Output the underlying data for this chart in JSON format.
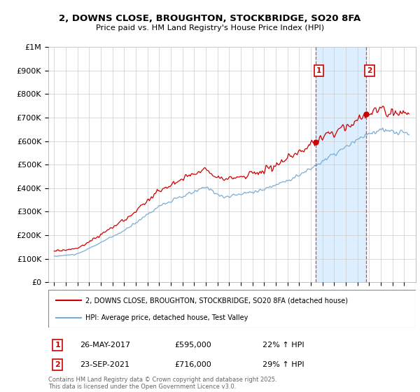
{
  "title": "2, DOWNS CLOSE, BROUGHTON, STOCKBRIDGE, SO20 8FA",
  "subtitle": "Price paid vs. HM Land Registry's House Price Index (HPI)",
  "legend_line1": "2, DOWNS CLOSE, BROUGHTON, STOCKBRIDGE, SO20 8FA (detached house)",
  "legend_line2": "HPI: Average price, detached house, Test Valley",
  "ylim": [
    0,
    1000000
  ],
  "yticks": [
    0,
    100000,
    200000,
    300000,
    400000,
    500000,
    600000,
    700000,
    800000,
    900000,
    1000000
  ],
  "ytick_labels": [
    "£0",
    "£100K",
    "£200K",
    "£300K",
    "£400K",
    "£500K",
    "£600K",
    "£700K",
    "£800K",
    "£900K",
    "£1M"
  ],
  "transaction1_x": 2017.4,
  "transaction1_price": 595000,
  "transaction1_date": "26-MAY-2017",
  "transaction1_pct": "22% ↑ HPI",
  "transaction2_x": 2021.73,
  "transaction2_price": 716000,
  "transaction2_date": "23-SEP-2021",
  "transaction2_pct": "29% ↑ HPI",
  "property_color": "#cc0000",
  "hpi_color": "#7aaed6",
  "vline_color": "#dd3333",
  "shade_color": "#ddeeff",
  "bg_color": "#ffffff",
  "grid_color": "#cccccc",
  "xlim": [
    1994.5,
    2026.0
  ],
  "xticks": [
    1995,
    1996,
    1997,
    1998,
    1999,
    2000,
    2001,
    2002,
    2003,
    2004,
    2005,
    2006,
    2007,
    2008,
    2009,
    2010,
    2011,
    2012,
    2013,
    2014,
    2015,
    2016,
    2017,
    2018,
    2019,
    2020,
    2021,
    2022,
    2023,
    2024,
    2025
  ],
  "footer": "Contains HM Land Registry data © Crown copyright and database right 2025.\nThis data is licensed under the Open Government Licence v3.0."
}
